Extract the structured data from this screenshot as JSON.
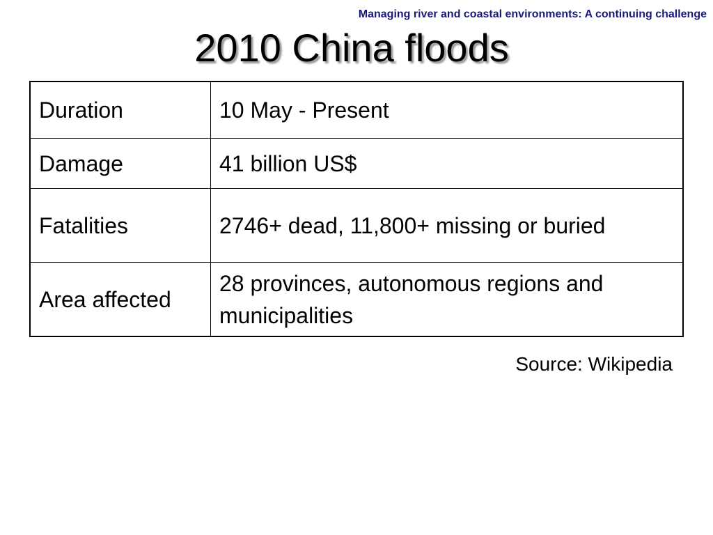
{
  "header": {
    "note": "Managing river and coastal environments: A continuing challenge"
  },
  "slide": {
    "title": "2010 China floods"
  },
  "table": {
    "rows": [
      {
        "label": "Duration",
        "value": "10 May - Present"
      },
      {
        "label": "Damage",
        "value": "41 billion US$"
      },
      {
        "label": "Fatalities",
        "value": "2746+ dead, 11,800+ missing or buried"
      },
      {
        "label": "Area affected",
        "value": "28 provinces, autonomous regions and municipalities"
      }
    ]
  },
  "footer": {
    "source": "Source: Wikipedia"
  },
  "colors": {
    "header_note": "#1a1a7a",
    "text": "#000000",
    "background": "#ffffff"
  }
}
